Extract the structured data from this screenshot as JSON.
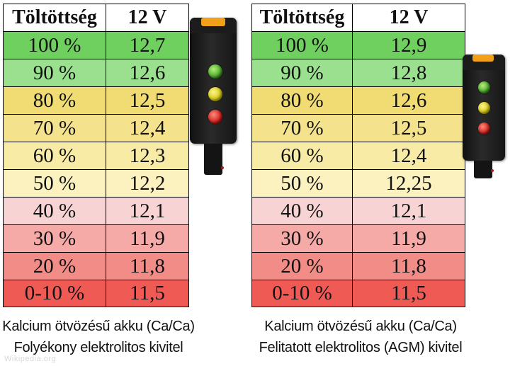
{
  "row_colors": [
    "#6fcf5f",
    "#9be08f",
    "#f0dc73",
    "#f4e38c",
    "#f7eba6",
    "#fbf2bf",
    "#f8d3d3",
    "#f5aaa8",
    "#f28c86",
    "#ef5a55"
  ],
  "left_table": {
    "header_charge": "Töltöttség",
    "header_voltage": "12 V",
    "rows": [
      {
        "charge": "100 %",
        "voltage": "12,7"
      },
      {
        "charge": "90 %",
        "voltage": "12,6"
      },
      {
        "charge": "80 %",
        "voltage": "12,5"
      },
      {
        "charge": "70 %",
        "voltage": "12,4"
      },
      {
        "charge": "60 %",
        "voltage": "12,3"
      },
      {
        "charge": "50 %",
        "voltage": "12,2"
      },
      {
        "charge": "40 %",
        "voltage": "12,1"
      },
      {
        "charge": "30 %",
        "voltage": "11,9"
      },
      {
        "charge": "20 %",
        "voltage": "11,8"
      },
      {
        "charge": "0-10 %",
        "voltage": "11,5"
      }
    ],
    "caption_line1": "Kalcium ötvözésű akku (Ca/Ca)",
    "caption_line2": "Folyékony elektrolitos kivitel"
  },
  "right_table": {
    "header_charge": "Töltöttség",
    "header_voltage": "12 V",
    "rows": [
      {
        "charge": "100 %",
        "voltage": "12,9"
      },
      {
        "charge": "90 %",
        "voltage": "12,8"
      },
      {
        "charge": "80 %",
        "voltage": "12,6"
      },
      {
        "charge": "70 %",
        "voltage": "12,5"
      },
      {
        "charge": "60 %",
        "voltage": "12,4"
      },
      {
        "charge": "50 %",
        "voltage": "12,25"
      },
      {
        "charge": "40 %",
        "voltage": "12,1"
      },
      {
        "charge": "30 %",
        "voltage": "11,9"
      },
      {
        "charge": "20 %",
        "voltage": "11,8"
      },
      {
        "charge": "0-10 %",
        "voltage": "11,5"
      }
    ],
    "caption_line1": "Kalcium ötvözésű akku (Ca/Ca)",
    "caption_line2": "Felitatott elektrolitos (AGM) kivitel"
  },
  "indicator_lights": [
    "green",
    "yellow",
    "red"
  ],
  "indicator_accent_color": "#f0a019",
  "watermark": "Wikipedia.org"
}
